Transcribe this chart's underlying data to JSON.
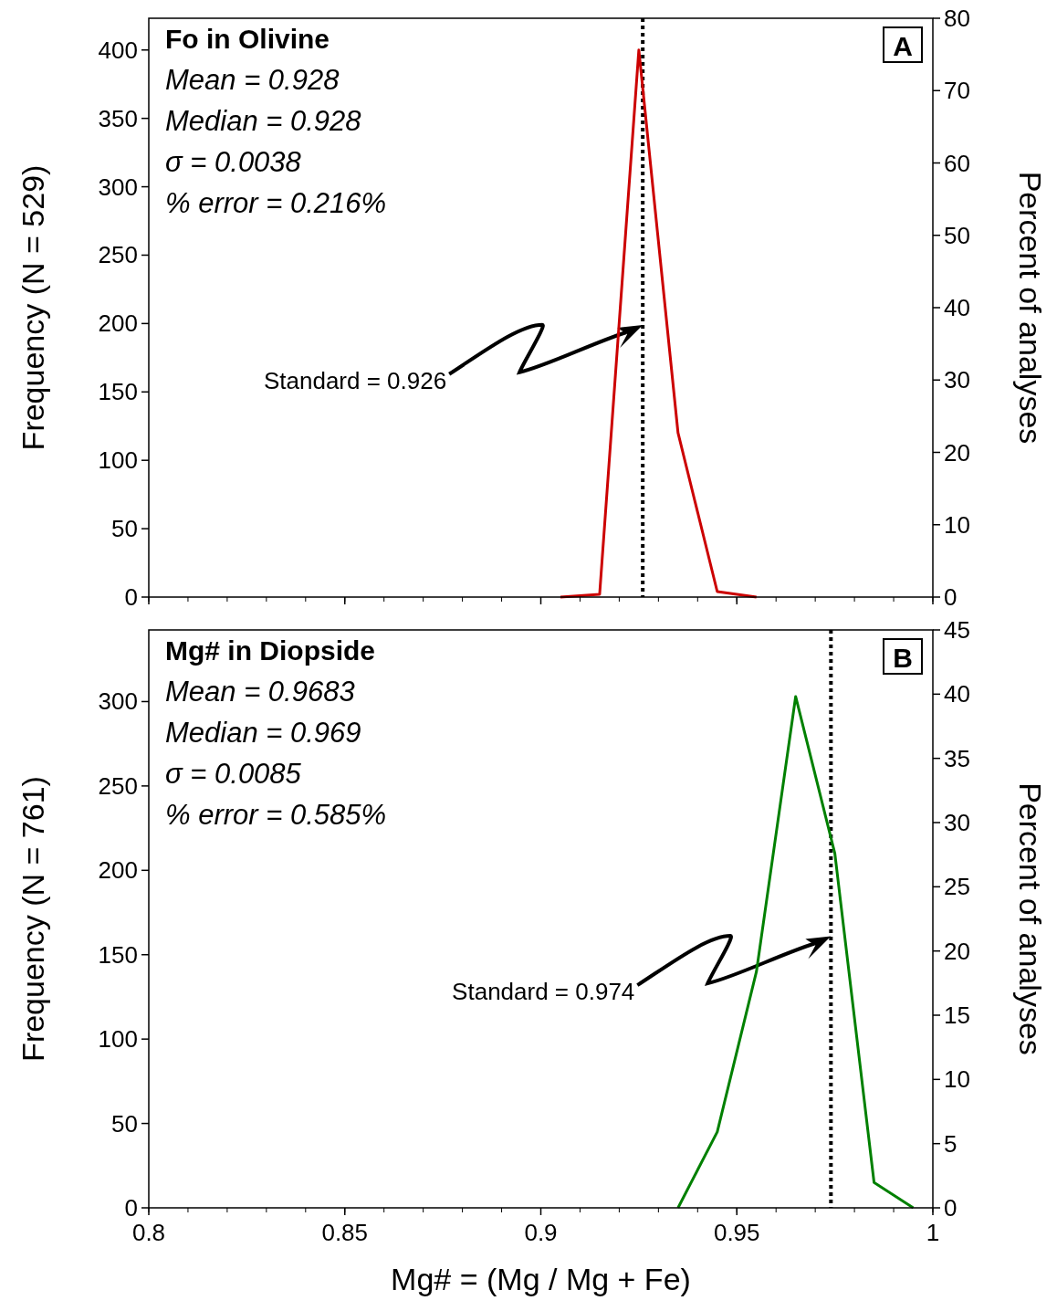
{
  "chart_data": [
    {
      "type": "line",
      "title": "Fo in Olivine",
      "ylabel": "Frequency (N = 529)",
      "y2label": "Percent of analyses",
      "x": [
        0.905,
        0.915,
        0.925,
        0.935,
        0.945,
        0.955
      ],
      "series": [
        {
          "color": "#cc0000",
          "values": [
            0,
            2,
            400,
            120,
            4,
            0
          ]
        }
      ],
      "xlim": [
        0.8,
        1
      ],
      "xticks": [
        0.8,
        0.85,
        0.9,
        0.95,
        1
      ],
      "ylim": [
        0,
        423.2
      ],
      "yticks": [
        0,
        50,
        100,
        150,
        200,
        250,
        300,
        350,
        400
      ],
      "y2lim": [
        0,
        80
      ],
      "y2ticks": [
        0,
        10,
        20,
        30,
        40,
        50,
        60,
        70,
        80
      ],
      "tick_labels": "y",
      "grid": false,
      "marker": "none",
      "ref_lines": [
        {
          "axis": "x",
          "value": 0.926,
          "label": "Standard = 0.926",
          "color": "#000000",
          "line_style": "dotted"
        }
      ],
      "annotations": [
        "Mean = 0.928",
        "Median = 0.928",
        "σ = 0.0038",
        "% error = 0.216%",
        "A"
      ]
    },
    {
      "type": "line",
      "title": "Mg# in Diopside",
      "xlabel": "Mg# = (Mg / Mg + Fe)",
      "ylabel": "Frequency (N = 761)",
      "y2label": "Percent of analyses",
      "x": [
        0.935,
        0.945,
        0.955,
        0.965,
        0.975,
        0.985,
        0.995
      ],
      "series": [
        {
          "color": "#008000",
          "values": [
            0,
            45,
            140,
            303,
            210,
            15,
            0
          ]
        }
      ],
      "xlim": [
        0.8,
        1
      ],
      "xticks": [
        0.8,
        0.85,
        0.9,
        0.95,
        1
      ],
      "ylim": [
        0,
        342.45
      ],
      "yticks": [
        0,
        50,
        100,
        150,
        200,
        250,
        300
      ],
      "y2lim": [
        0,
        45
      ],
      "y2ticks": [
        0,
        5,
        10,
        15,
        20,
        25,
        30,
        35,
        40,
        45
      ],
      "grid": false,
      "marker": "none",
      "ref_lines": [
        {
          "axis": "x",
          "value": 0.974,
          "label": "Standard = 0.974",
          "color": "#000000",
          "line_style": "dotted"
        }
      ],
      "annotations": [
        "Mean = 0.9683",
        "Median = 0.969",
        "σ = 0.0085",
        "% error = 0.585%",
        "B"
      ]
    }
  ]
}
